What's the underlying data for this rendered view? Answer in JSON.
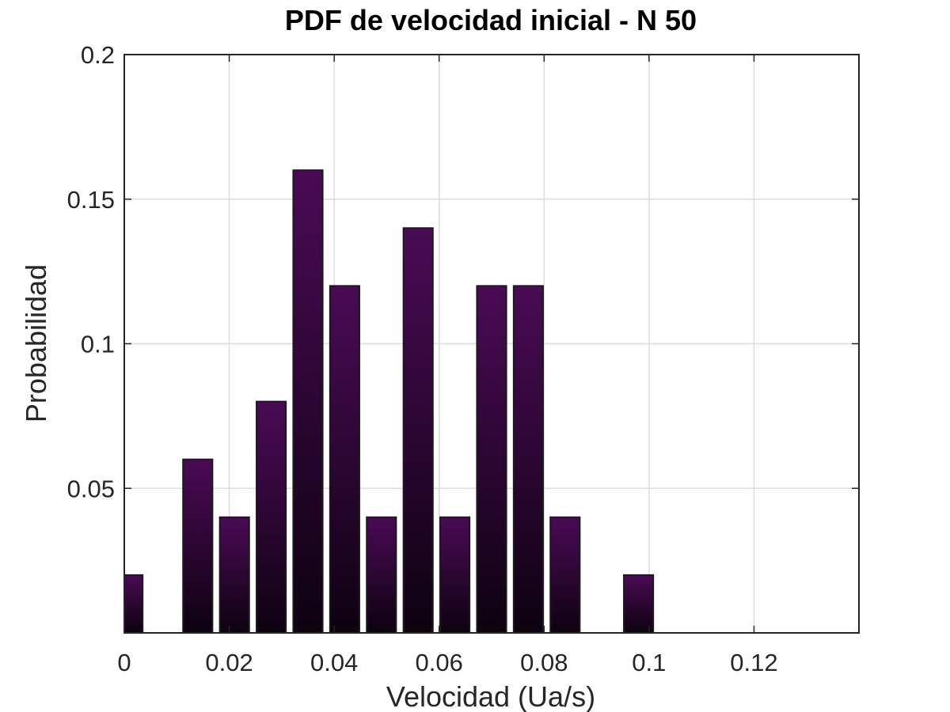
{
  "chart_data": {
    "type": "bar",
    "title": "PDF de velocidad inicial - N 50",
    "xlabel": "Velocidad (Ua/s)",
    "ylabel": "Probabilidad",
    "xlim": [
      0,
      0.14
    ],
    "ylim": [
      0,
      0.2
    ],
    "xticks": [
      0,
      0.02,
      0.04,
      0.06,
      0.08,
      0.1,
      0.12
    ],
    "xtick_labels": [
      "0",
      "0.02",
      "0.04",
      "0.06",
      "0.08",
      "0.1",
      "0.12"
    ],
    "yticks": [
      0.05,
      0.1,
      0.15,
      0.2
    ],
    "ytick_labels": [
      "0.05",
      "0.1",
      "0.15",
      "0.2"
    ],
    "grid": true,
    "bar_width": 0.0056,
    "x": [
      0.0007,
      0.014,
      0.021,
      0.028,
      0.035,
      0.042,
      0.049,
      0.056,
      0.063,
      0.07,
      0.077,
      0.084,
      0.098
    ],
    "values": [
      0.02,
      0.06,
      0.04,
      0.08,
      0.16,
      0.12,
      0.04,
      0.14,
      0.04,
      0.12,
      0.12,
      0.04,
      0.02
    ],
    "colors": {
      "bar_top": "#4a0a55",
      "bar_bottom": "#0d0210",
      "edge": "#1a1a1a"
    }
  }
}
